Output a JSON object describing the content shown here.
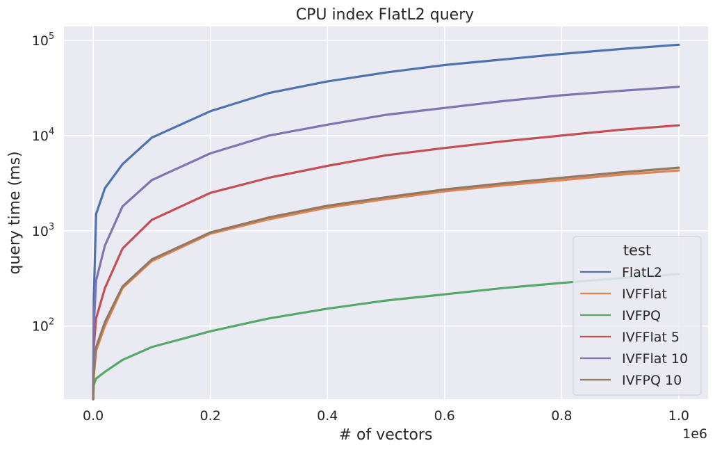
{
  "chart_data": {
    "type": "line",
    "title": "CPU index FlatL2 query",
    "xlabel": "# of vectors",
    "ylabel": "query time (ms)",
    "x_offset_label": "1e6",
    "x_scale_factor": 1000000,
    "y_scale": "log",
    "xlim": [
      -50000,
      1050000
    ],
    "ylim": [
      17,
      140000
    ],
    "grid": true,
    "x_ticks": [
      {
        "value": 0,
        "label": "0.0"
      },
      {
        "value": 200000,
        "label": "0.2"
      },
      {
        "value": 400000,
        "label": "0.4"
      },
      {
        "value": 600000,
        "label": "0.6"
      },
      {
        "value": 800000,
        "label": "0.8"
      },
      {
        "value": 1000000,
        "label": "1.0"
      }
    ],
    "y_ticks": [
      {
        "value": 100,
        "base": "10",
        "exp": "2"
      },
      {
        "value": 1000,
        "base": "10",
        "exp": "3"
      },
      {
        "value": 10000,
        "base": "10",
        "exp": "4"
      },
      {
        "value": 100000,
        "base": "10",
        "exp": "5"
      }
    ],
    "legend": {
      "title": "test",
      "position": "lower-right"
    },
    "x": [
      0,
      1000,
      5000,
      20000,
      50000,
      100000,
      200000,
      300000,
      400000,
      500000,
      600000,
      700000,
      800000,
      900000,
      1000000
    ],
    "series": [
      {
        "name": "FlatL2",
        "color": "#4c72b0",
        "values": [
          17,
          200,
          1500,
          2800,
          5000,
          9500,
          18000,
          28000,
          37000,
          46000,
          55000,
          63000,
          72000,
          81000,
          90000
        ]
      },
      {
        "name": "IVFFlat",
        "color": "#dd8452",
        "values": [
          17,
          30,
          55,
          100,
          250,
          480,
          930,
          1320,
          1750,
          2150,
          2600,
          3000,
          3400,
          3880,
          4300
        ]
      },
      {
        "name": "IVFPQ",
        "color": "#55a868",
        "values": [
          17,
          24,
          28,
          33,
          44,
          60,
          88,
          120,
          152,
          185,
          215,
          250,
          283,
          318,
          350
        ]
      },
      {
        "name": "IVFFlat 5",
        "color": "#c44e52",
        "values": [
          17,
          60,
          120,
          250,
          650,
          1300,
          2500,
          3600,
          4800,
          6200,
          7400,
          8700,
          10000,
          11500,
          12800
        ]
      },
      {
        "name": "IVFFlat 10",
        "color": "#8172b3",
        "values": [
          17,
          100,
          300,
          700,
          1800,
          3400,
          6500,
          10000,
          13000,
          16500,
          19500,
          23000,
          26500,
          29500,
          32500
        ]
      },
      {
        "name": "IVFPQ 10",
        "color": "#937860",
        "values": [
          17,
          32,
          60,
          110,
          260,
          500,
          960,
          1380,
          1830,
          2250,
          2720,
          3150,
          3600,
          4100,
          4600
        ]
      }
    ]
  }
}
